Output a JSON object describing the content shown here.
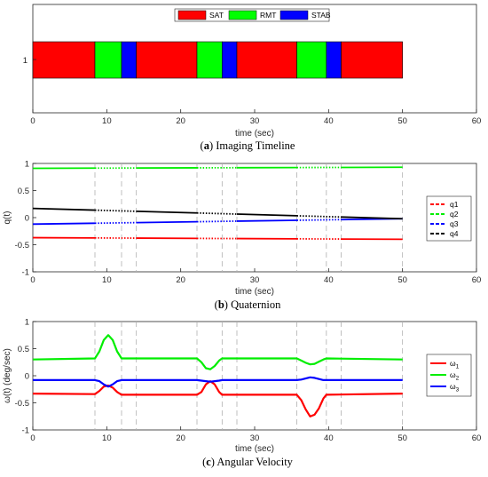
{
  "chart_data": [
    {
      "type": "timeline",
      "caption_letter": "a",
      "caption_text": "Imaging Timeline",
      "xlabel": "time (sec)",
      "xlim": [
        0,
        60
      ],
      "xticks": [
        0,
        10,
        20,
        30,
        40,
        50,
        60
      ],
      "ytick_label": "1",
      "legend": [
        {
          "name": "SAT",
          "color": "#ff0000"
        },
        {
          "name": "RMT",
          "color": "#00ff00"
        },
        {
          "name": "STAB",
          "color": "#0000ff"
        }
      ],
      "segments": [
        {
          "start": 0,
          "end": 8.4,
          "mode": "SAT"
        },
        {
          "start": 8.4,
          "end": 12.0,
          "mode": "RMT"
        },
        {
          "start": 12.0,
          "end": 14.0,
          "mode": "STAB"
        },
        {
          "start": 14.0,
          "end": 22.2,
          "mode": "SAT"
        },
        {
          "start": 22.2,
          "end": 25.6,
          "mode": "RMT"
        },
        {
          "start": 25.6,
          "end": 27.6,
          "mode": "STAB"
        },
        {
          "start": 27.6,
          "end": 35.7,
          "mode": "SAT"
        },
        {
          "start": 35.7,
          "end": 39.7,
          "mode": "RMT"
        },
        {
          "start": 39.7,
          "end": 41.7,
          "mode": "STAB"
        },
        {
          "start": 41.7,
          "end": 50.0,
          "mode": "SAT"
        }
      ]
    },
    {
      "type": "line",
      "caption_letter": "b",
      "caption_text": "Quaternion",
      "xlabel": "time (sec)",
      "ylabel": "q(t)",
      "xlim": [
        0,
        60
      ],
      "ylim": [
        -1,
        1
      ],
      "xticks": [
        0,
        10,
        20,
        30,
        40,
        50,
        60
      ],
      "yticks": [
        -1,
        -0.5,
        0,
        0.5,
        1
      ],
      "mode_boundaries": [
        8.4,
        12.0,
        14.0,
        22.2,
        25.6,
        27.6,
        35.7,
        39.7,
        41.7,
        50.0
      ],
      "series": [
        {
          "name": "q1",
          "color": "#ff0000",
          "x": [
            0,
            50
          ],
          "y": [
            -0.37,
            -0.4
          ]
        },
        {
          "name": "q2",
          "color": "#00ee00",
          "x": [
            0,
            50
          ],
          "y": [
            0.91,
            0.93
          ]
        },
        {
          "name": "q3",
          "color": "#0000ff",
          "x": [
            0,
            50
          ],
          "y": [
            -0.12,
            -0.02
          ]
        },
        {
          "name": "q4",
          "color": "#000000",
          "x": [
            0,
            50
          ],
          "y": [
            0.17,
            -0.02
          ]
        }
      ]
    },
    {
      "type": "line",
      "caption_letter": "c",
      "caption_text": "Angular Velocity",
      "xlabel": "time (sec)",
      "ylabel": "ω(t) (deg/sec)",
      "xlim": [
        0,
        60
      ],
      "ylim": [
        -1,
        1
      ],
      "xticks": [
        0,
        10,
        20,
        30,
        40,
        50,
        60
      ],
      "yticks": [
        -1,
        -0.5,
        0,
        0.5,
        1
      ],
      "mode_boundaries": [
        8.4,
        12.0,
        14.0,
        22.2,
        25.6,
        27.6,
        35.7,
        39.7,
        41.7,
        50.0
      ],
      "series": [
        {
          "name": "ω1",
          "color": "#ff0000",
          "x": [
            0,
            8.4,
            9.0,
            9.6,
            10.2,
            10.8,
            11.4,
            12.0,
            22.2,
            22.8,
            23.4,
            24.0,
            24.6,
            25.2,
            25.6,
            35.7,
            36.3,
            36.9,
            37.5,
            38.1,
            38.7,
            39.3,
            39.7,
            50
          ],
          "y": [
            -0.33,
            -0.34,
            -0.28,
            -0.2,
            -0.18,
            -0.22,
            -0.3,
            -0.35,
            -0.35,
            -0.3,
            -0.16,
            -0.1,
            -0.16,
            -0.3,
            -0.35,
            -0.35,
            -0.45,
            -0.62,
            -0.75,
            -0.72,
            -0.6,
            -0.42,
            -0.35,
            -0.33
          ]
        },
        {
          "name": "ω2",
          "color": "#00ee00",
          "x": [
            0,
            8.4,
            9.0,
            9.6,
            10.2,
            10.8,
            11.4,
            12.0,
            22.2,
            22.8,
            23.4,
            24.0,
            24.6,
            25.2,
            25.6,
            35.7,
            36.3,
            36.9,
            37.5,
            38.1,
            38.7,
            39.3,
            39.7,
            50
          ],
          "y": [
            0.3,
            0.32,
            0.45,
            0.66,
            0.75,
            0.66,
            0.45,
            0.32,
            0.32,
            0.25,
            0.14,
            0.12,
            0.18,
            0.28,
            0.32,
            0.32,
            0.28,
            0.24,
            0.21,
            0.22,
            0.26,
            0.3,
            0.32,
            0.3
          ]
        },
        {
          "name": "ω3",
          "color": "#0000ff",
          "x": [
            0,
            8.4,
            9.0,
            9.6,
            10.2,
            10.8,
            11.4,
            12.0,
            22.2,
            22.8,
            23.4,
            24.0,
            24.6,
            25.2,
            25.6,
            35.7,
            36.3,
            36.9,
            37.5,
            38.1,
            38.7,
            39.3,
            39.7,
            50
          ],
          "y": [
            -0.08,
            -0.08,
            -0.1,
            -0.16,
            -0.2,
            -0.16,
            -0.1,
            -0.08,
            -0.08,
            -0.09,
            -0.1,
            -0.11,
            -0.1,
            -0.09,
            -0.08,
            -0.08,
            -0.07,
            -0.05,
            -0.03,
            -0.04,
            -0.06,
            -0.08,
            -0.08,
            -0.08
          ]
        }
      ]
    }
  ]
}
